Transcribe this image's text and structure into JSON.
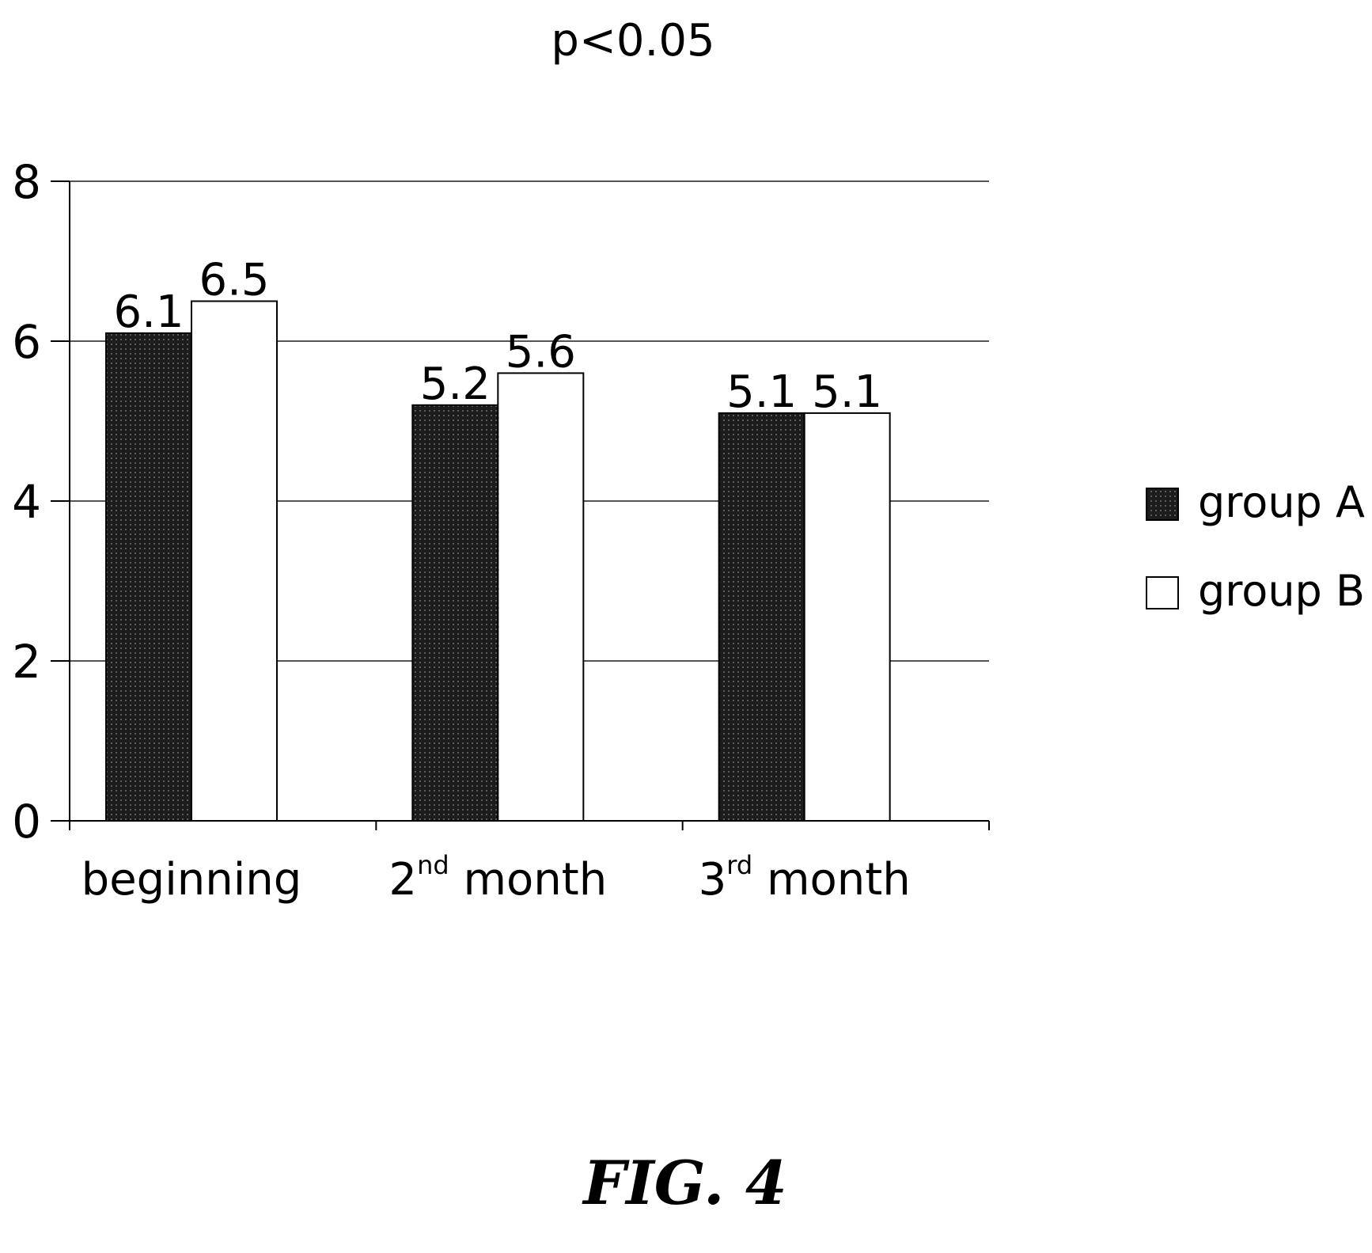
{
  "figure_caption": "FIG. 4",
  "chart_data": {
    "type": "bar",
    "title": "p<0.05",
    "categories": [
      {
        "base": "beginning",
        "sup": "",
        "rest": ""
      },
      {
        "base": "2",
        "sup": "nd",
        "rest": " month"
      },
      {
        "base": "3",
        "sup": "rd",
        "rest": " month"
      }
    ],
    "series": [
      {
        "name": "group A",
        "values": [
          6.1,
          5.2,
          5.1
        ],
        "value_labels": [
          "6.1",
          "5.2",
          "5.1"
        ],
        "fill": "#1c1c1c",
        "pattern": "dotted"
      },
      {
        "name": "group B",
        "values": [
          6.5,
          5.6,
          5.1
        ],
        "value_labels": [
          "6.5",
          "5.6",
          "5.1"
        ],
        "fill": "#ffffff",
        "pattern": "none"
      }
    ],
    "ylim": [
      0,
      8
    ],
    "yticks": [
      "0",
      "2",
      "4",
      "6",
      "8"
    ],
    "xlabel": "",
    "ylabel": "",
    "grid": true,
    "legend_position": "right"
  }
}
